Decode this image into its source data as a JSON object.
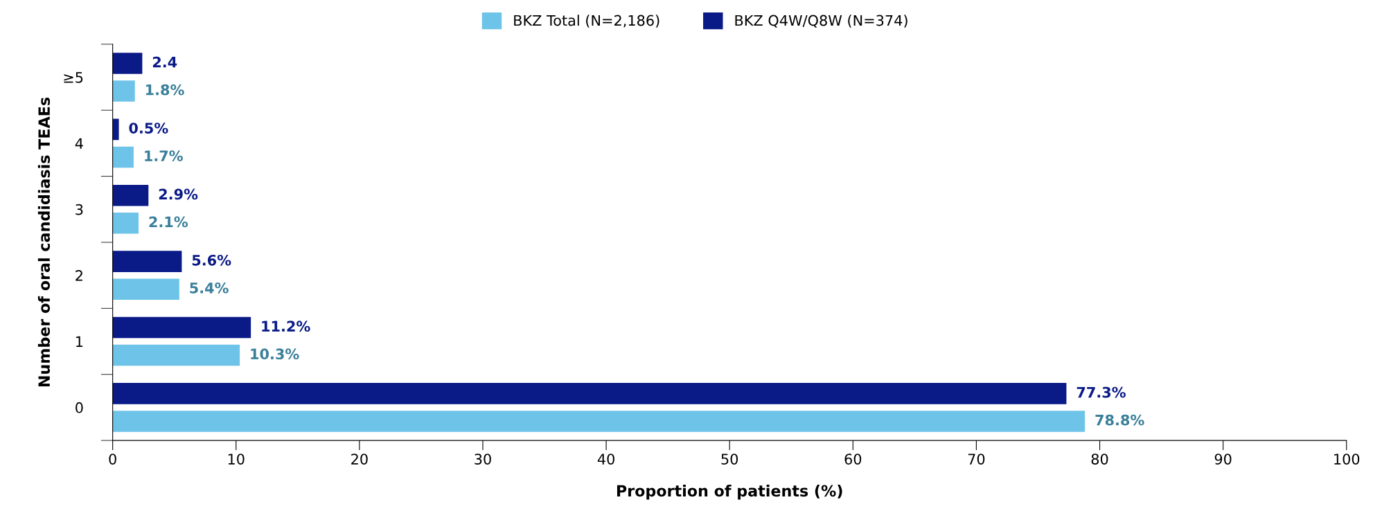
{
  "chart_data": {
    "type": "bar",
    "orientation": "horizontal",
    "xlabel": "Proportion of patients (%)",
    "ylabel": "Number of oral candidiasis TEAEs",
    "categories": [
      "≥5",
      "4",
      "3",
      "2",
      "1",
      "0"
    ],
    "series": [
      {
        "name": "BKZ Total (N=2,186)",
        "color": "#6ec4e8",
        "values": [
          1.8,
          1.7,
          2.1,
          5.4,
          10.3,
          78.8
        ],
        "value_labels": [
          "1.8%",
          "1.7%",
          "2.1%",
          "5.4%",
          "10.3%",
          "78.8%"
        ]
      },
      {
        "name": "BKZ Q4W/Q8W (N=374)",
        "color": "#0a1a87",
        "values": [
          2.4,
          0.5,
          2.9,
          5.6,
          11.2,
          77.3
        ],
        "value_labels": [
          "2.4",
          "0.5%",
          "2.9%",
          "5.6%",
          "11.2%",
          "77.3%"
        ]
      }
    ],
    "xlim": [
      0,
      100
    ],
    "xticks": [
      0,
      10,
      20,
      30,
      40,
      50,
      60,
      70,
      80,
      90,
      100
    ],
    "grid": false,
    "legend": "top"
  }
}
